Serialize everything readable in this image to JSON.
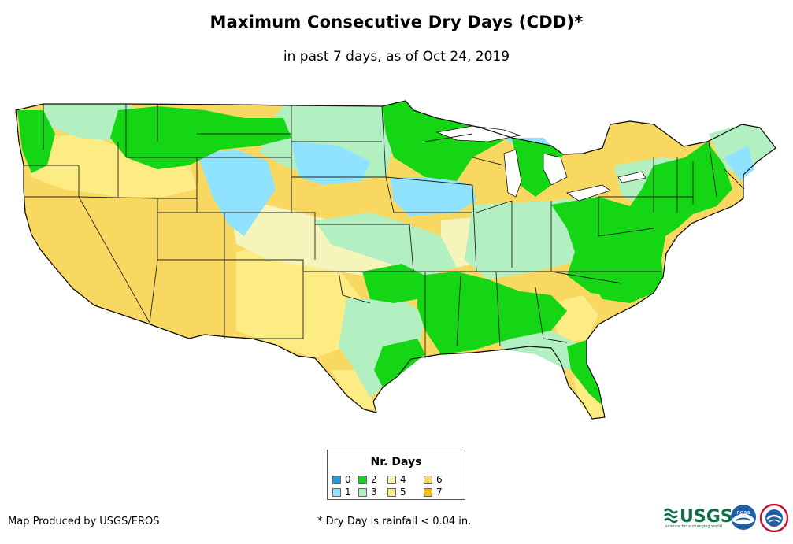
{
  "title": "Maximum Consecutive Dry Days (CDD)*",
  "subtitle": "in past 7 days, as of Oct 24, 2019",
  "legend": {
    "title": "Nr. Days",
    "items": [
      {
        "label": "0",
        "color": "#1e9be8"
      },
      {
        "label": "1",
        "color": "#8fe3ff"
      },
      {
        "label": "2",
        "color": "#14d614"
      },
      {
        "label": "3",
        "color": "#b2f0c2"
      },
      {
        "label": "4",
        "color": "#f4f4bb"
      },
      {
        "label": "5",
        "color": "#fdeb84"
      },
      {
        "label": "6",
        "color": "#f9d862"
      },
      {
        "label": "7",
        "color": "#f8c000"
      }
    ]
  },
  "footer": {
    "producer": "Map Produced by USGS/EROS",
    "note": "* Dry Day is rainfall < 0.04 in."
  },
  "logos": {
    "usgs": "USGS",
    "usgs_tagline": "science for a changing world",
    "noaa": "noaa",
    "nws": "nws"
  }
}
